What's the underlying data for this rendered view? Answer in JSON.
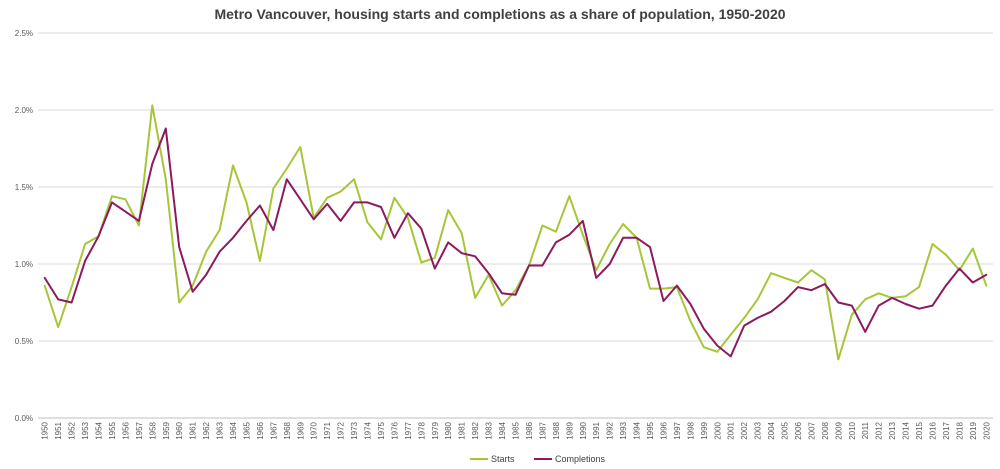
{
  "chart_data": {
    "type": "line",
    "title": "Metro Vancouver, housing starts and completions as a share of population, 1950-2020",
    "xlabel": "",
    "ylabel": "",
    "ylim": [
      0,
      2.5
    ],
    "yticks": [
      "0.0%",
      "0.5%",
      "1.0%",
      "1.5%",
      "2.0%",
      "2.5%"
    ],
    "ytick_values": [
      0,
      0.5,
      1.0,
      1.5,
      2.0,
      2.5
    ],
    "grid": "horizontal",
    "legend_position": "bottom",
    "x": [
      "1950",
      "1951",
      "1952",
      "1953",
      "1954",
      "1955",
      "1956",
      "1957",
      "1958",
      "1959",
      "1960",
      "1961",
      "1962",
      "1963",
      "1964",
      "1965",
      "1966",
      "1967",
      "1968",
      "1969",
      "1970",
      "1971",
      "1972",
      "1973",
      "1974",
      "1975",
      "1976",
      "1977",
      "1978",
      "1979",
      "1980",
      "1981",
      "1982",
      "1983",
      "1984",
      "1985",
      "1986",
      "1987",
      "1988",
      "1989",
      "1990",
      "1991",
      "1992",
      "1993",
      "1994",
      "1995",
      "1996",
      "1997",
      "1998",
      "1999",
      "2000",
      "2001",
      "2002",
      "2003",
      "2004",
      "2005",
      "2006",
      "2007",
      "2008",
      "2009",
      "2010",
      "2011",
      "2012",
      "2013",
      "2014",
      "2015",
      "2016",
      "2017",
      "2018",
      "2019",
      "2020"
    ],
    "series": [
      {
        "name": "Starts",
        "color": "#a6c639",
        "values": [
          0.86,
          0.59,
          0.85,
          1.13,
          1.18,
          1.44,
          1.42,
          1.25,
          2.03,
          1.55,
          0.75,
          0.86,
          1.08,
          1.22,
          1.64,
          1.4,
          1.02,
          1.49,
          1.62,
          1.76,
          1.3,
          1.43,
          1.47,
          1.55,
          1.27,
          1.16,
          1.43,
          1.3,
          1.01,
          1.04,
          1.35,
          1.2,
          0.78,
          0.93,
          0.73,
          0.83,
          0.99,
          1.25,
          1.21,
          1.44,
          1.19,
          0.96,
          1.13,
          1.26,
          1.17,
          0.84,
          0.84,
          0.85,
          0.63,
          0.46,
          0.43,
          0.54,
          0.65,
          0.77,
          0.94,
          0.91,
          0.88,
          0.96,
          0.9,
          0.38,
          0.67,
          0.77,
          0.81,
          0.78,
          0.79,
          0.85,
          1.13,
          1.06,
          0.96,
          1.1,
          0.86
        ]
      },
      {
        "name": "Completions",
        "color": "#8b1a5e",
        "values": [
          0.91,
          0.77,
          0.75,
          1.02,
          1.18,
          1.4,
          1.34,
          1.28,
          1.65,
          1.88,
          1.11,
          0.82,
          0.93,
          1.08,
          1.17,
          1.28,
          1.38,
          1.22,
          1.55,
          1.42,
          1.29,
          1.39,
          1.28,
          1.4,
          1.4,
          1.37,
          1.17,
          1.33,
          1.23,
          0.97,
          1.14,
          1.07,
          1.05,
          0.94,
          0.81,
          0.8,
          0.99,
          0.99,
          1.14,
          1.19,
          1.28,
          0.91,
          1.0,
          1.17,
          1.17,
          1.11,
          0.76,
          0.86,
          0.74,
          0.58,
          0.47,
          0.4,
          0.6,
          0.65,
          0.69,
          0.76,
          0.85,
          0.83,
          0.87,
          0.75,
          0.73,
          0.56,
          0.73,
          0.78,
          0.74,
          0.71,
          0.73,
          0.86,
          0.97,
          0.88,
          0.93
        ]
      }
    ]
  }
}
